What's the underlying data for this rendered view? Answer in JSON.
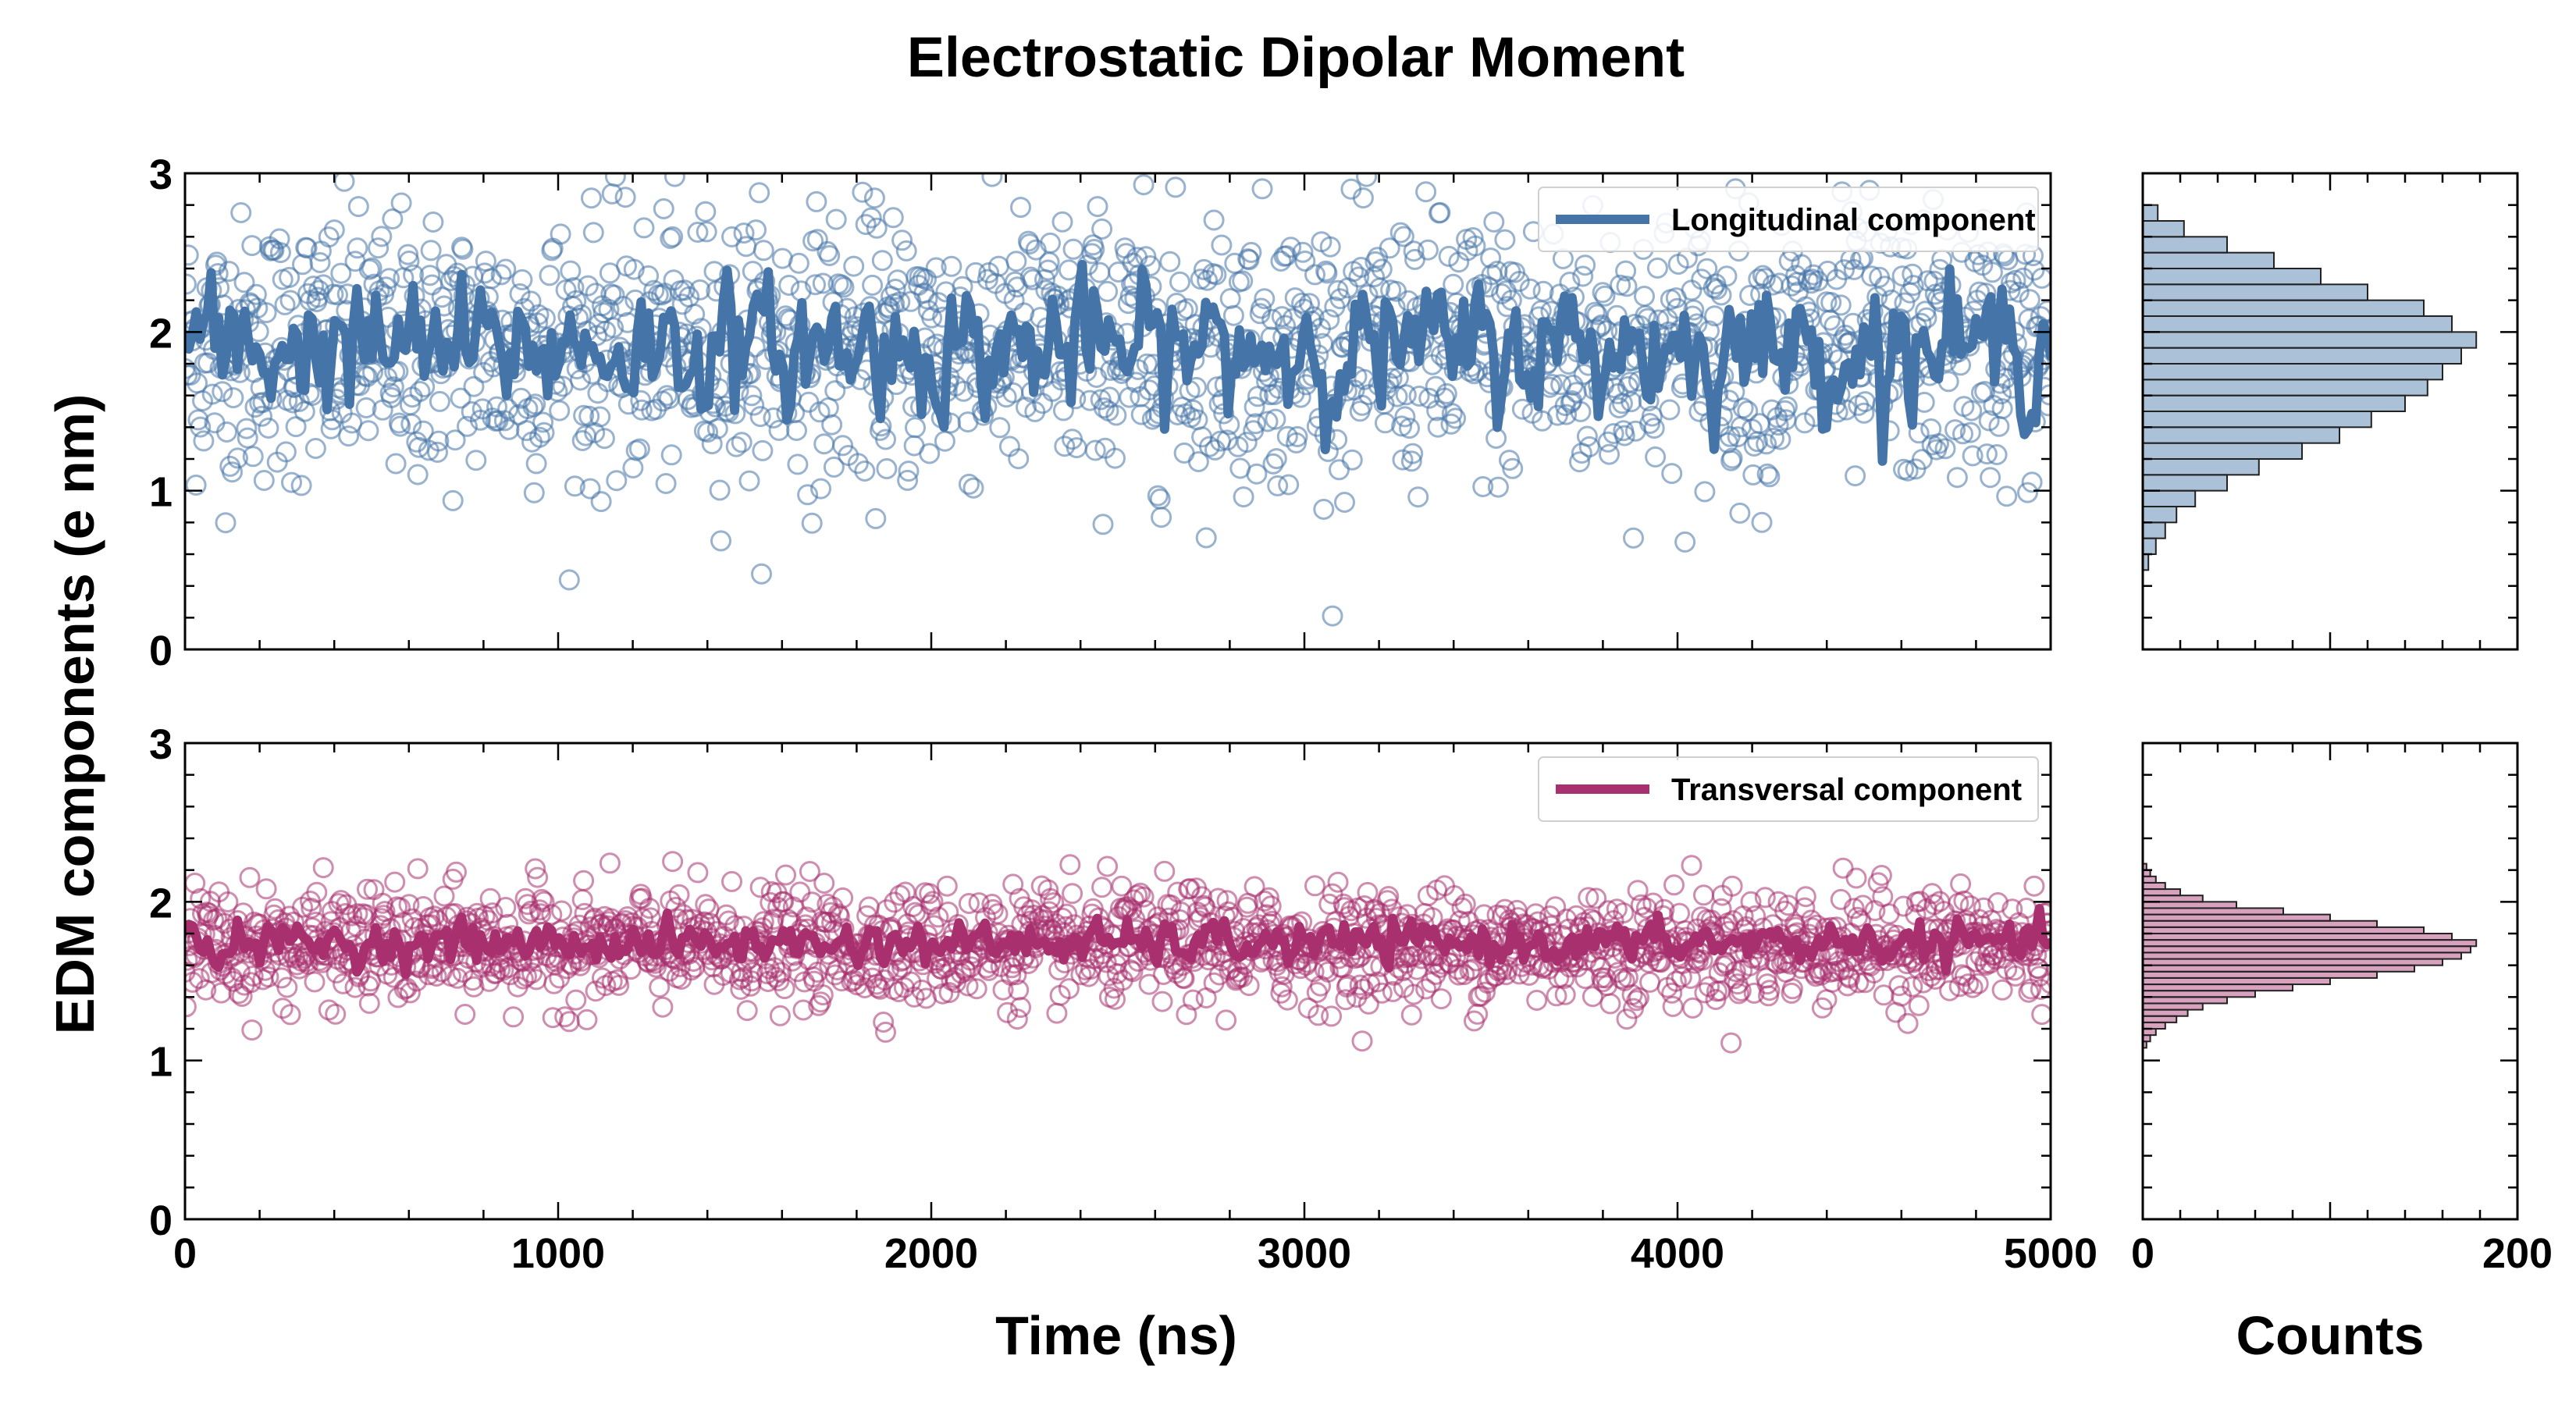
{
  "chart_data": {
    "type": "scatter",
    "title": "Electrostatic Dipolar Moment",
    "ylabel": "EDM components (e nm)",
    "xlabel": "Time (ns)",
    "hist_xlabel": "Counts",
    "xlim": [
      0,
      5000
    ],
    "ylim": [
      0,
      3
    ],
    "hist_xlim": [
      0,
      200
    ],
    "x_ticks": [
      "0",
      "1000",
      "2000",
      "3000",
      "4000",
      "5000"
    ],
    "y_ticks": [
      "0",
      "1",
      "2",
      "3"
    ],
    "hist_ticks": [
      "0",
      "200"
    ],
    "grid": false,
    "legend_position": "top-right",
    "panels": [
      {
        "name": "Longitudinal component",
        "color": "#4575a8",
        "scatter_mean": 1.9,
        "scatter_std": 0.42,
        "line_mean": 1.9,
        "line_std": 0.22,
        "histogram": {
          "bin_centers": [
            0.55,
            0.65,
            0.75,
            0.85,
            0.95,
            1.05,
            1.15,
            1.25,
            1.35,
            1.45,
            1.55,
            1.65,
            1.75,
            1.85,
            1.95,
            2.05,
            2.15,
            2.25,
            2.35,
            2.45,
            2.55,
            2.65,
            2.75
          ],
          "counts": [
            3,
            7,
            12,
            18,
            28,
            45,
            62,
            85,
            105,
            122,
            140,
            152,
            160,
            170,
            178,
            165,
            150,
            120,
            95,
            70,
            45,
            22,
            8
          ]
        }
      },
      {
        "name": "Transversal component",
        "color": "#a8306e",
        "scatter_mean": 1.72,
        "scatter_std": 0.18,
        "line_mean": 1.74,
        "line_std": 0.07,
        "histogram": {
          "bin_centers": [
            1.1,
            1.14,
            1.18,
            1.22,
            1.26,
            1.3,
            1.34,
            1.38,
            1.42,
            1.46,
            1.5,
            1.54,
            1.58,
            1.62,
            1.66,
            1.7,
            1.74,
            1.78,
            1.82,
            1.86,
            1.9,
            1.94,
            1.98,
            2.02,
            2.06,
            2.1,
            2.14,
            2.18,
            2.22
          ],
          "counts": [
            2,
            4,
            7,
            12,
            18,
            24,
            32,
            45,
            60,
            80,
            100,
            125,
            145,
            160,
            170,
            175,
            178,
            165,
            150,
            125,
            100,
            75,
            50,
            32,
            20,
            12,
            7,
            4,
            2
          ]
        }
      }
    ]
  }
}
